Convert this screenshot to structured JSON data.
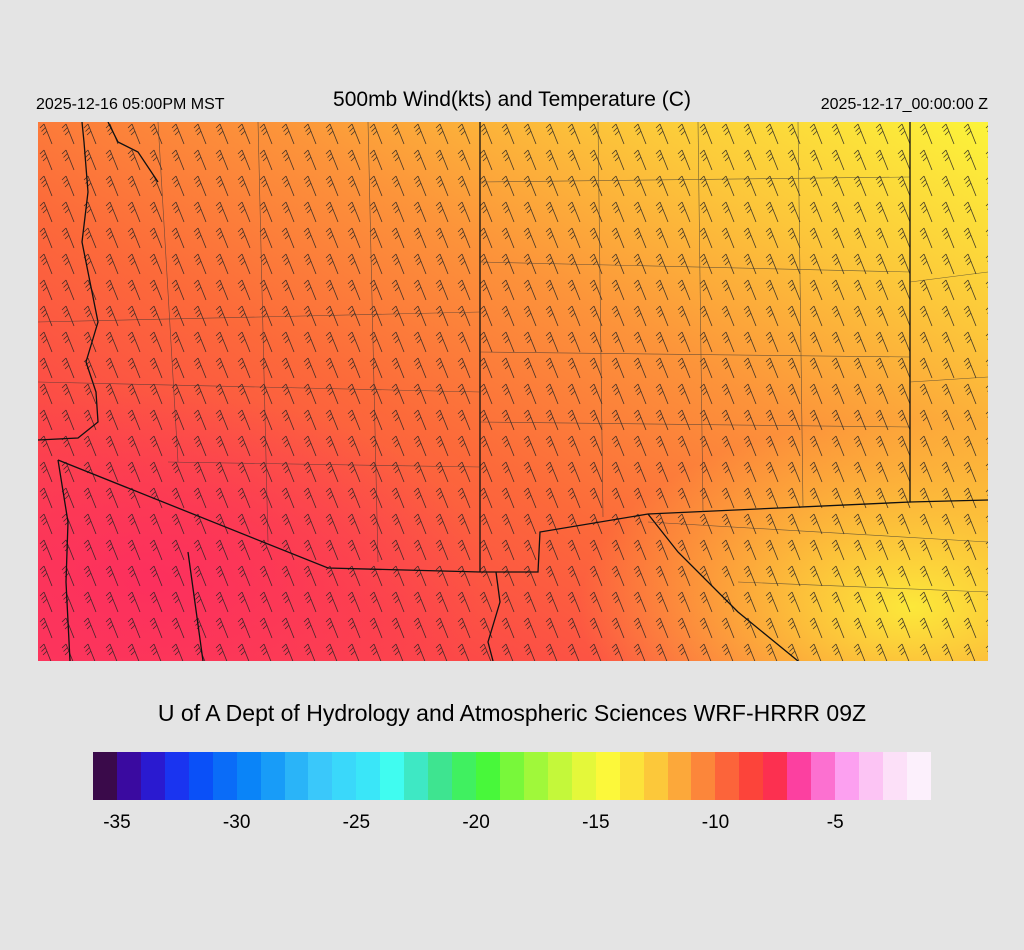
{
  "header": {
    "valid_local": "2025-12-16 05:00PM MST",
    "title": "500mb Wind(kts) and Temperature (C)",
    "valid_utc": "2025-12-17_00:00:00 Z"
  },
  "credit": "U of A Dept of Hydrology and Atmospheric Sciences WRF-HRRR 09Z",
  "colorbar": {
    "colors": [
      "#3a0a4a",
      "#3a0aa0",
      "#2a1ad0",
      "#1a34f0",
      "#0a50f8",
      "#0a6cf8",
      "#0a84f8",
      "#189cf8",
      "#2ab4f8",
      "#3ac8fa",
      "#3ad8fa",
      "#3ae6f8",
      "#40fcf0",
      "#3ee8c4",
      "#3ee490",
      "#40f060",
      "#48f83a",
      "#78f83a",
      "#a0f83a",
      "#c4f83a",
      "#e4f83a",
      "#fcf83a",
      "#fce23a",
      "#fcc83a",
      "#fca83a",
      "#fc863a",
      "#fc643a",
      "#fc443a",
      "#fc3050",
      "#fc40a0",
      "#fc70d0",
      "#fca0f0",
      "#fcc4f4",
      "#fce0f8",
      "#fcf0fc"
    ],
    "tick_labels": [
      "-35",
      "-30",
      "-25",
      "-20",
      "-15",
      "-10",
      "-5"
    ],
    "tick_values": [
      -35,
      -30,
      -25,
      -20,
      -15,
      -10,
      -5
    ],
    "value_min": -36,
    "value_max": -1
  }
}
